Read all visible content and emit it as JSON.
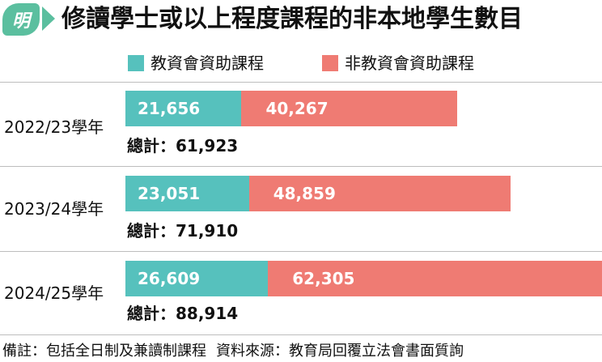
{
  "header": {
    "logo_text": "明",
    "title": "修讀學士或以上程度課程的非本地學生數目"
  },
  "colors": {
    "funded": "#56c1bd",
    "non_funded": "#ef7b73",
    "accent": "#5bbf9f"
  },
  "legend": {
    "funded_label": "教資會資助課程",
    "non_funded_label": "非教資會資助課程"
  },
  "years": [
    {
      "label": "2022/23學年",
      "funded_text": "21,656",
      "non_funded_text": "40,267",
      "total_text": "總計：61,923"
    },
    {
      "label": "2023/24學年",
      "funded_text": "23,051",
      "non_funded_text": "48,859",
      "total_text": "總計：71,910"
    },
    {
      "label": "2024/25學年",
      "funded_text": "26,609",
      "non_funded_text": "62,305",
      "total_text": "總計：88,914"
    }
  ],
  "chart_data": {
    "type": "bar",
    "orientation": "horizontal",
    "stacked": true,
    "categories": [
      "2022/23學年",
      "2023/24學年",
      "2024/25學年"
    ],
    "series": [
      {
        "name": "教資會資助課程",
        "values": [
          21656,
          23051,
          26609
        ]
      },
      {
        "name": "非教資會資助課程",
        "values": [
          40267,
          48859,
          62305
        ]
      }
    ],
    "totals": [
      61923,
      71910,
      88914
    ],
    "title": "修讀學士或以上程度課程的非本地學生數目",
    "legend": "top-center",
    "grid": false
  },
  "footer": {
    "note": "備註：包括全日制及兼讀制課程",
    "source": "資料來源：教育局回覆立法會書面質詢"
  }
}
